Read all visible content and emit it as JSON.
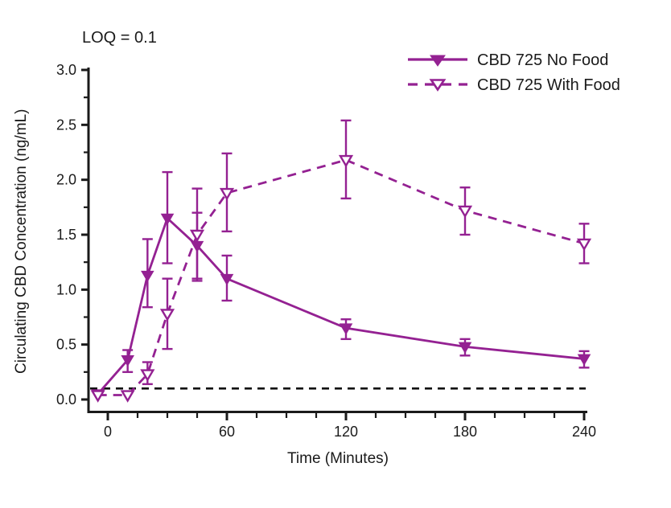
{
  "chart_data": {
    "type": "line",
    "title": "",
    "loq_annotation": "LOQ = 0.1",
    "xlabel": "Time (Minutes)",
    "ylabel": "Circulating CBD Concentration (ng/mL)",
    "xlim": [
      -12,
      242
    ],
    "ylim": [
      0,
      3.0
    ],
    "grid": false,
    "x_major_ticks": [
      0,
      60,
      120,
      180,
      240
    ],
    "x_tick_labels": [
      "0",
      "60",
      "120",
      "180",
      "240"
    ],
    "x_minor_ticks": [
      15,
      30,
      45,
      75,
      90,
      105,
      135,
      150,
      165,
      195,
      210,
      225
    ],
    "y_major_ticks": [
      0.0,
      0.5,
      1.0,
      1.5,
      2.0,
      2.5,
      3.0
    ],
    "y_tick_labels": [
      "0.0",
      "0.5",
      "1.0",
      "1.5",
      "2.0",
      "2.5",
      "3.0"
    ],
    "y_minor_ticks": [
      0.25,
      0.75,
      1.25,
      1.75,
      2.25,
      2.75
    ],
    "loq_line": {
      "value": 0.1,
      "style": "dashed",
      "color": "#111111"
    },
    "accent_color": "#942192",
    "axis_color": "#1a1a1a",
    "legend": {
      "position": "top-right"
    },
    "series": [
      {
        "name": "CBD 725 No Food",
        "line_style": "solid",
        "marker": "filled-triangle-down",
        "color": "#942192",
        "x": [
          -5,
          10,
          20,
          30,
          45,
          60,
          120,
          180,
          240
        ],
        "y": [
          0.05,
          0.36,
          1.13,
          1.65,
          1.4,
          1.1,
          0.65,
          0.48,
          0.37
        ],
        "err_low": [
          0.05,
          0.25,
          0.84,
          1.24,
          1.1,
          0.9,
          0.55,
          0.4,
          0.29
        ],
        "err_high": [
          0.05,
          0.45,
          1.46,
          2.07,
          1.7,
          1.31,
          0.73,
          0.55,
          0.44
        ]
      },
      {
        "name": "CBD 725 With Food",
        "line_style": "dashed",
        "marker": "open-triangle-down",
        "color": "#942192",
        "x": [
          -5,
          10,
          20,
          30,
          45,
          60,
          120,
          180,
          240
        ],
        "y": [
          0.04,
          0.04,
          0.23,
          0.78,
          1.5,
          1.88,
          2.18,
          1.72,
          1.42
        ],
        "err_low": [
          0.04,
          0.04,
          0.14,
          0.46,
          1.08,
          1.53,
          1.83,
          1.5,
          1.24
        ],
        "err_high": [
          0.04,
          0.04,
          0.34,
          1.1,
          1.92,
          2.24,
          2.54,
          1.93,
          1.6
        ]
      }
    ]
  }
}
